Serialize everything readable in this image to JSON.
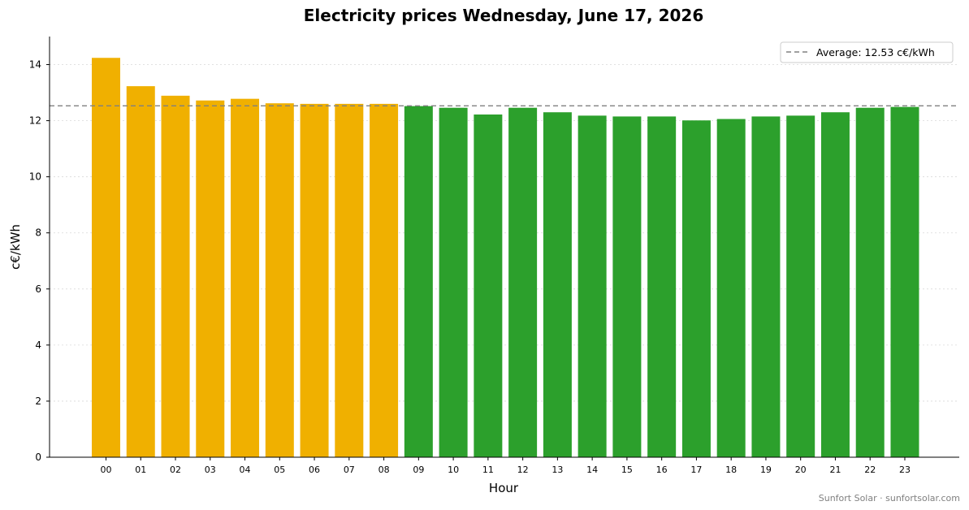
{
  "chart_data": {
    "type": "bar",
    "title": "Electricity prices Wednesday, June 17, 2026",
    "xlabel": "Hour",
    "ylabel": "c€/kWh",
    "categories": [
      "00",
      "01",
      "02",
      "03",
      "04",
      "05",
      "06",
      "07",
      "08",
      "09",
      "10",
      "11",
      "12",
      "13",
      "14",
      "15",
      "16",
      "17",
      "18",
      "19",
      "20",
      "21",
      "22",
      "23"
    ],
    "values": [
      14.24,
      13.23,
      12.89,
      12.72,
      12.78,
      12.62,
      12.6,
      12.6,
      12.6,
      12.52,
      12.46,
      12.22,
      12.46,
      12.3,
      12.18,
      12.15,
      12.15,
      12.01,
      12.06,
      12.15,
      12.18,
      12.3,
      12.46,
      12.49
    ],
    "ylim": [
      0,
      15
    ],
    "yticks": [
      0,
      2,
      4,
      6,
      8,
      10,
      12,
      14
    ],
    "average": 12.53,
    "legend": {
      "label": "Average: 12.53 c€/kWh",
      "placement": "top-right"
    },
    "colors": {
      "above_average": "#f0b000",
      "below_average": "#2ca02c",
      "average_line": "#808080"
    },
    "grid": "horizontal dotted"
  },
  "credit": "Sunfort Solar · sunfortsolar.com"
}
